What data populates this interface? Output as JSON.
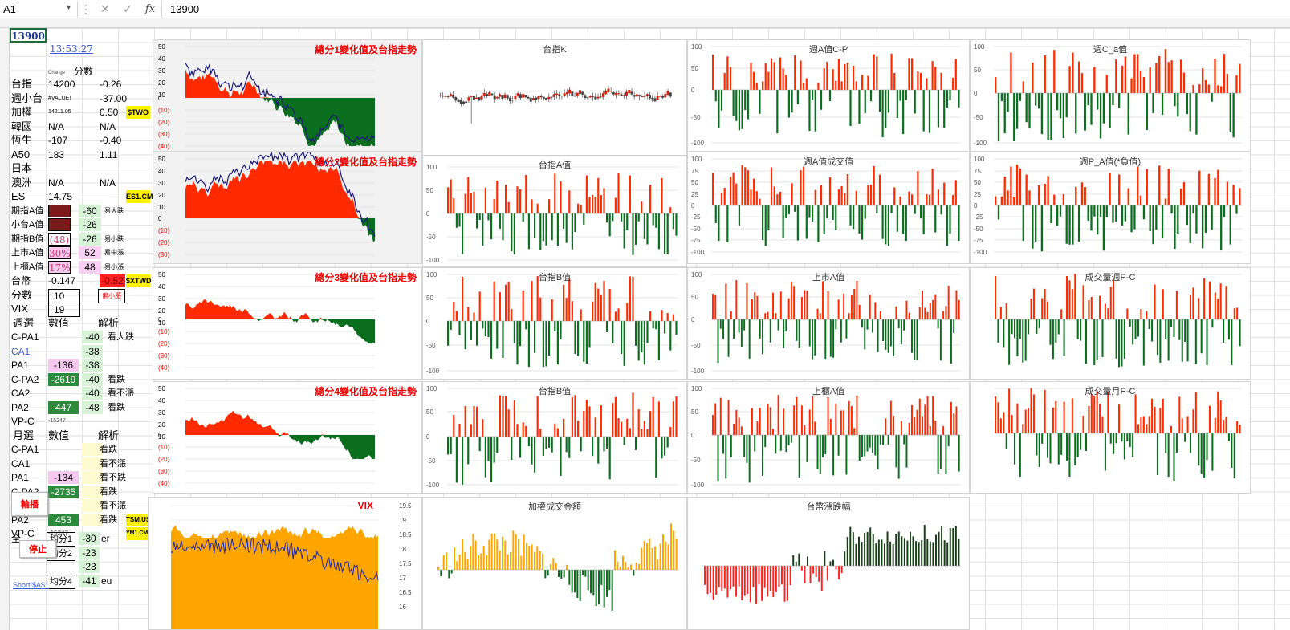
{
  "formula_bar": {
    "name_box": "A1",
    "cancel_icon": "✕",
    "confirm_icon": "✓",
    "fx": "fx",
    "value": "13900"
  },
  "cells": {
    "a1": "13900",
    "time": "13:53:27",
    "change_hdr": "Change",
    "score_hdr": "分數",
    "rows": [
      {
        "label": "台指",
        "v1": "14200",
        "v2": "-0.26"
      },
      {
        "label": "週小台",
        "v1": "#VALUE!",
        "v2": "-37.00"
      },
      {
        "label": "加權",
        "v1": "14211.05",
        "v2": "0.50",
        "tag": "$TWO"
      },
      {
        "label": "韓國",
        "v1": "N/A",
        "v2": "N/A"
      },
      {
        "label": "恆生",
        "v1": "-107",
        "v2": "-0.40"
      },
      {
        "label": "A50",
        "v1": "183",
        "v2": "1.11"
      },
      {
        "label": "日本",
        "v1": "",
        "v2": ""
      },
      {
        "label": "澳洲",
        "v1": "N/A",
        "v2": "N/A"
      },
      {
        "label": "ES",
        "v1": "14.75",
        "v2": "",
        "tag": "ES1.CME"
      }
    ],
    "ind": [
      {
        "label": "期指A值",
        "score": "-60",
        "note": "易大跌"
      },
      {
        "label": "小台A值",
        "score": "-26",
        "note": ""
      },
      {
        "label": "期指B值",
        "v": "(48)",
        "score": "-26",
        "note": "易小跌"
      },
      {
        "label": "上市A值",
        "v": "30%",
        "score": "52",
        "note": "易中漲"
      },
      {
        "label": "上櫃A值",
        "v": "17%",
        "score": "48",
        "note": "易小漲"
      }
    ],
    "twd": {
      "label": "台幣",
      "v": "-0.147",
      "neg": "-0.52",
      "tag": "$XTWD"
    },
    "score_row": {
      "label": "分數",
      "v": "10",
      "note": "偏小漲"
    },
    "vix": {
      "label": "VIX",
      "v": "19"
    },
    "week_hdr": {
      "a": "週選",
      "b": "數值",
      "c": "解析"
    },
    "week": [
      {
        "label": "C-PA1",
        "score": "-40",
        "note": "看大跌"
      },
      {
        "label": "CA1",
        "score": "-38",
        "note": ""
      },
      {
        "label": "PA1",
        "v": "-136",
        "score": "-38",
        "note": ""
      },
      {
        "label": "C-PA2",
        "v": "-2619",
        "score": "-40",
        "note": "看跌"
      },
      {
        "label": "CA2",
        "score": "-40",
        "note": "看不漲"
      },
      {
        "label": "PA2",
        "v": "447",
        "score": "-48",
        "note": "看跌"
      }
    ],
    "vpc1": {
      "label": "VP-C",
      "v": "-15247"
    },
    "month_hdr": {
      "a": "月選",
      "b": "數值",
      "c": "解析"
    },
    "month": [
      {
        "label": "C-PA1",
        "note": "看跌"
      },
      {
        "label": "CA1",
        "note": "看不漲"
      },
      {
        "label": "PA1",
        "v": "-134",
        "note": "看不跌"
      },
      {
        "label": "C-PA2",
        "v": "-2735",
        "note": "看跌"
      },
      {
        "label": "CA2",
        "note": "看不漲"
      },
      {
        "label": "PA2",
        "v": "453",
        "note": "看跌",
        "tag": "TSM.US"
      }
    ],
    "vpc2": {
      "label": "VP-C",
      "v": "-15247",
      "tag": "YM1.CME"
    },
    "bottom": [
      {
        "a": "全",
        "b": "均分1",
        "c": "-30",
        "d": "er"
      },
      {
        "b": "均分2",
        "c": "-23"
      },
      {
        "c": "-23"
      },
      {
        "b": "均分4",
        "c": "-41",
        "d": "eu"
      }
    ],
    "short_link": "Short!$A$1"
  },
  "buttons": {
    "play": "輪播",
    "stop": "停止"
  },
  "charts": {
    "c1": "總分1變化值及台指走勢",
    "c2": "總分2變化值及台指走勢",
    "c3": "總分3變化值及台指走勢",
    "c4": "總分4變化值及台指走勢",
    "vix": "VIX",
    "k": "台指K",
    "ta": "台指A值",
    "tb": "台指B值",
    "tb2": "台指B值",
    "turnover": "加權成交金額",
    "wcp": "週A值C-P",
    "wvol": "週A值成交值",
    "lista": "上市A值",
    "otca": "上櫃A值",
    "fx": "台幣漲跌幅",
    "wc": "週C_a值",
    "wp": "週P_A值(*負值)",
    "volwk": "成交量週P-C",
    "volmo": "成交量月P-C"
  },
  "colors": {
    "up": "#ff2a00",
    "down": "#0a6e1e",
    "orange": "#ffa500",
    "line": "#1a1a7a"
  }
}
